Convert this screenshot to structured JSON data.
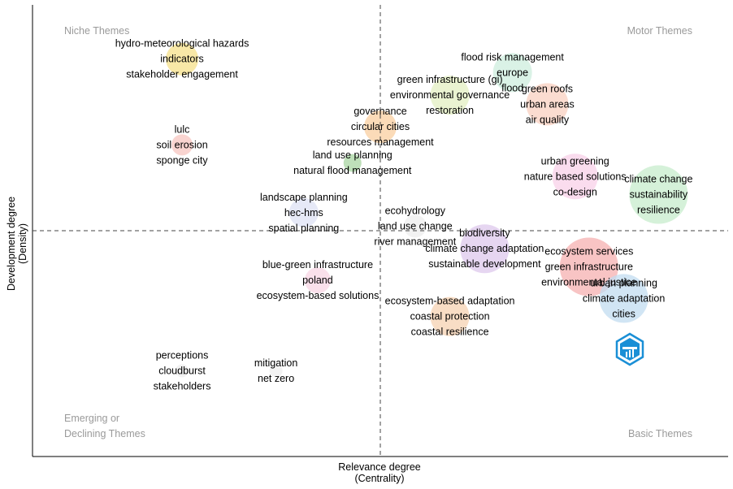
{
  "chart_data": {
    "type": "scatter",
    "xlabel": "Relevance degree\n(Centrality)",
    "ylabel": "Development degree\n(Density)",
    "quadrant_labels": {
      "top_left": "Niche Themes",
      "top_right": "Motor Themes",
      "bottom_left": "Emerging or\nDeclining Themes",
      "bottom_right": "Basic Themes"
    },
    "reference_lines": {
      "x": 0.5,
      "y": 0.5,
      "style": "dashed"
    },
    "xlim": [
      0,
      1
    ],
    "ylim": [
      0,
      1
    ],
    "grid": false,
    "clusters": [
      {
        "x": 0.215,
        "y": 0.88,
        "size": 20,
        "color": "#f5e08a",
        "labels": [
          "hydro-meteorological hazards",
          "indicators",
          "stakeholder engagement"
        ]
      },
      {
        "x": 0.215,
        "y": 0.69,
        "size": 13,
        "color": "#f7c6c0",
        "labels": [
          "lulc",
          "soil erosion",
          "sponge city"
        ]
      },
      {
        "x": 0.5,
        "y": 0.73,
        "size": 20,
        "color": "#f9cfa0",
        "labels": [
          "governance",
          "circular cities",
          "resources management"
        ]
      },
      {
        "x": 0.46,
        "y": 0.65,
        "size": 11,
        "color": "#a8d5a2",
        "labels": [
          "land use planning",
          "natural flood management"
        ]
      },
      {
        "x": 0.6,
        "y": 0.8,
        "size": 24,
        "color": "#e3efc2",
        "labels": [
          "green infrastructure (gi)",
          "environmental governance",
          "restoration"
        ]
      },
      {
        "x": 0.69,
        "y": 0.85,
        "size": 24,
        "color": "#cdeedd",
        "labels": [
          "flood risk management",
          "europe",
          "flood"
        ]
      },
      {
        "x": 0.74,
        "y": 0.78,
        "size": 26,
        "color": "#fad0c0",
        "labels": [
          "green roofs",
          "urban areas",
          "air quality"
        ]
      },
      {
        "x": 0.78,
        "y": 0.62,
        "size": 28,
        "color": "#f8d0e8",
        "labels": [
          "urban greening",
          "nature based solutions",
          "co-design"
        ]
      },
      {
        "x": 0.9,
        "y": 0.58,
        "size": 36,
        "color": "#c7eccc",
        "labels": [
          "climate change",
          "sustainability",
          "resilience"
        ]
      },
      {
        "x": 0.39,
        "y": 0.54,
        "size": 18,
        "color": "#dde2f4",
        "labels": [
          "landscape planning",
          "hec-hms",
          "spatial planning"
        ]
      },
      {
        "x": 0.55,
        "y": 0.51,
        "size": 14,
        "color": "#eeeeee",
        "labels": [
          "ecohydrology",
          "land use change",
          "river management"
        ]
      },
      {
        "x": 0.65,
        "y": 0.46,
        "size": 30,
        "color": "#ddc8ec",
        "labels": [
          "biodiversity",
          "climate change adaptation",
          "sustainable development"
        ]
      },
      {
        "x": 0.8,
        "y": 0.42,
        "size": 36,
        "color": "#f5b0b0",
        "labels": [
          "ecosystem services",
          "green infrastructure",
          "environmental justice"
        ]
      },
      {
        "x": 0.41,
        "y": 0.39,
        "size": 16,
        "color": "#f8d6e4",
        "labels": [
          "blue-green infrastructure",
          "poland",
          "ecosystem-based solutions"
        ]
      },
      {
        "x": 0.85,
        "y": 0.35,
        "size": 30,
        "color": "#c2dcf0",
        "labels": [
          "urban planning",
          "climate adaptation",
          "cities"
        ]
      },
      {
        "x": 0.6,
        "y": 0.31,
        "size": 24,
        "color": "#f5d2b2",
        "labels": [
          "ecosystem-based adaptation",
          "coastal protection",
          "coastal resilience"
        ]
      },
      {
        "x": 0.215,
        "y": 0.19,
        "size": 8,
        "color": "#eeeeee",
        "labels": [
          "perceptions",
          "cloudburst",
          "stakeholders"
        ]
      },
      {
        "x": 0.35,
        "y": 0.19,
        "size": 8,
        "color": "#eeeeee",
        "labels": [
          "mitigation",
          "net zero"
        ]
      }
    ]
  }
}
